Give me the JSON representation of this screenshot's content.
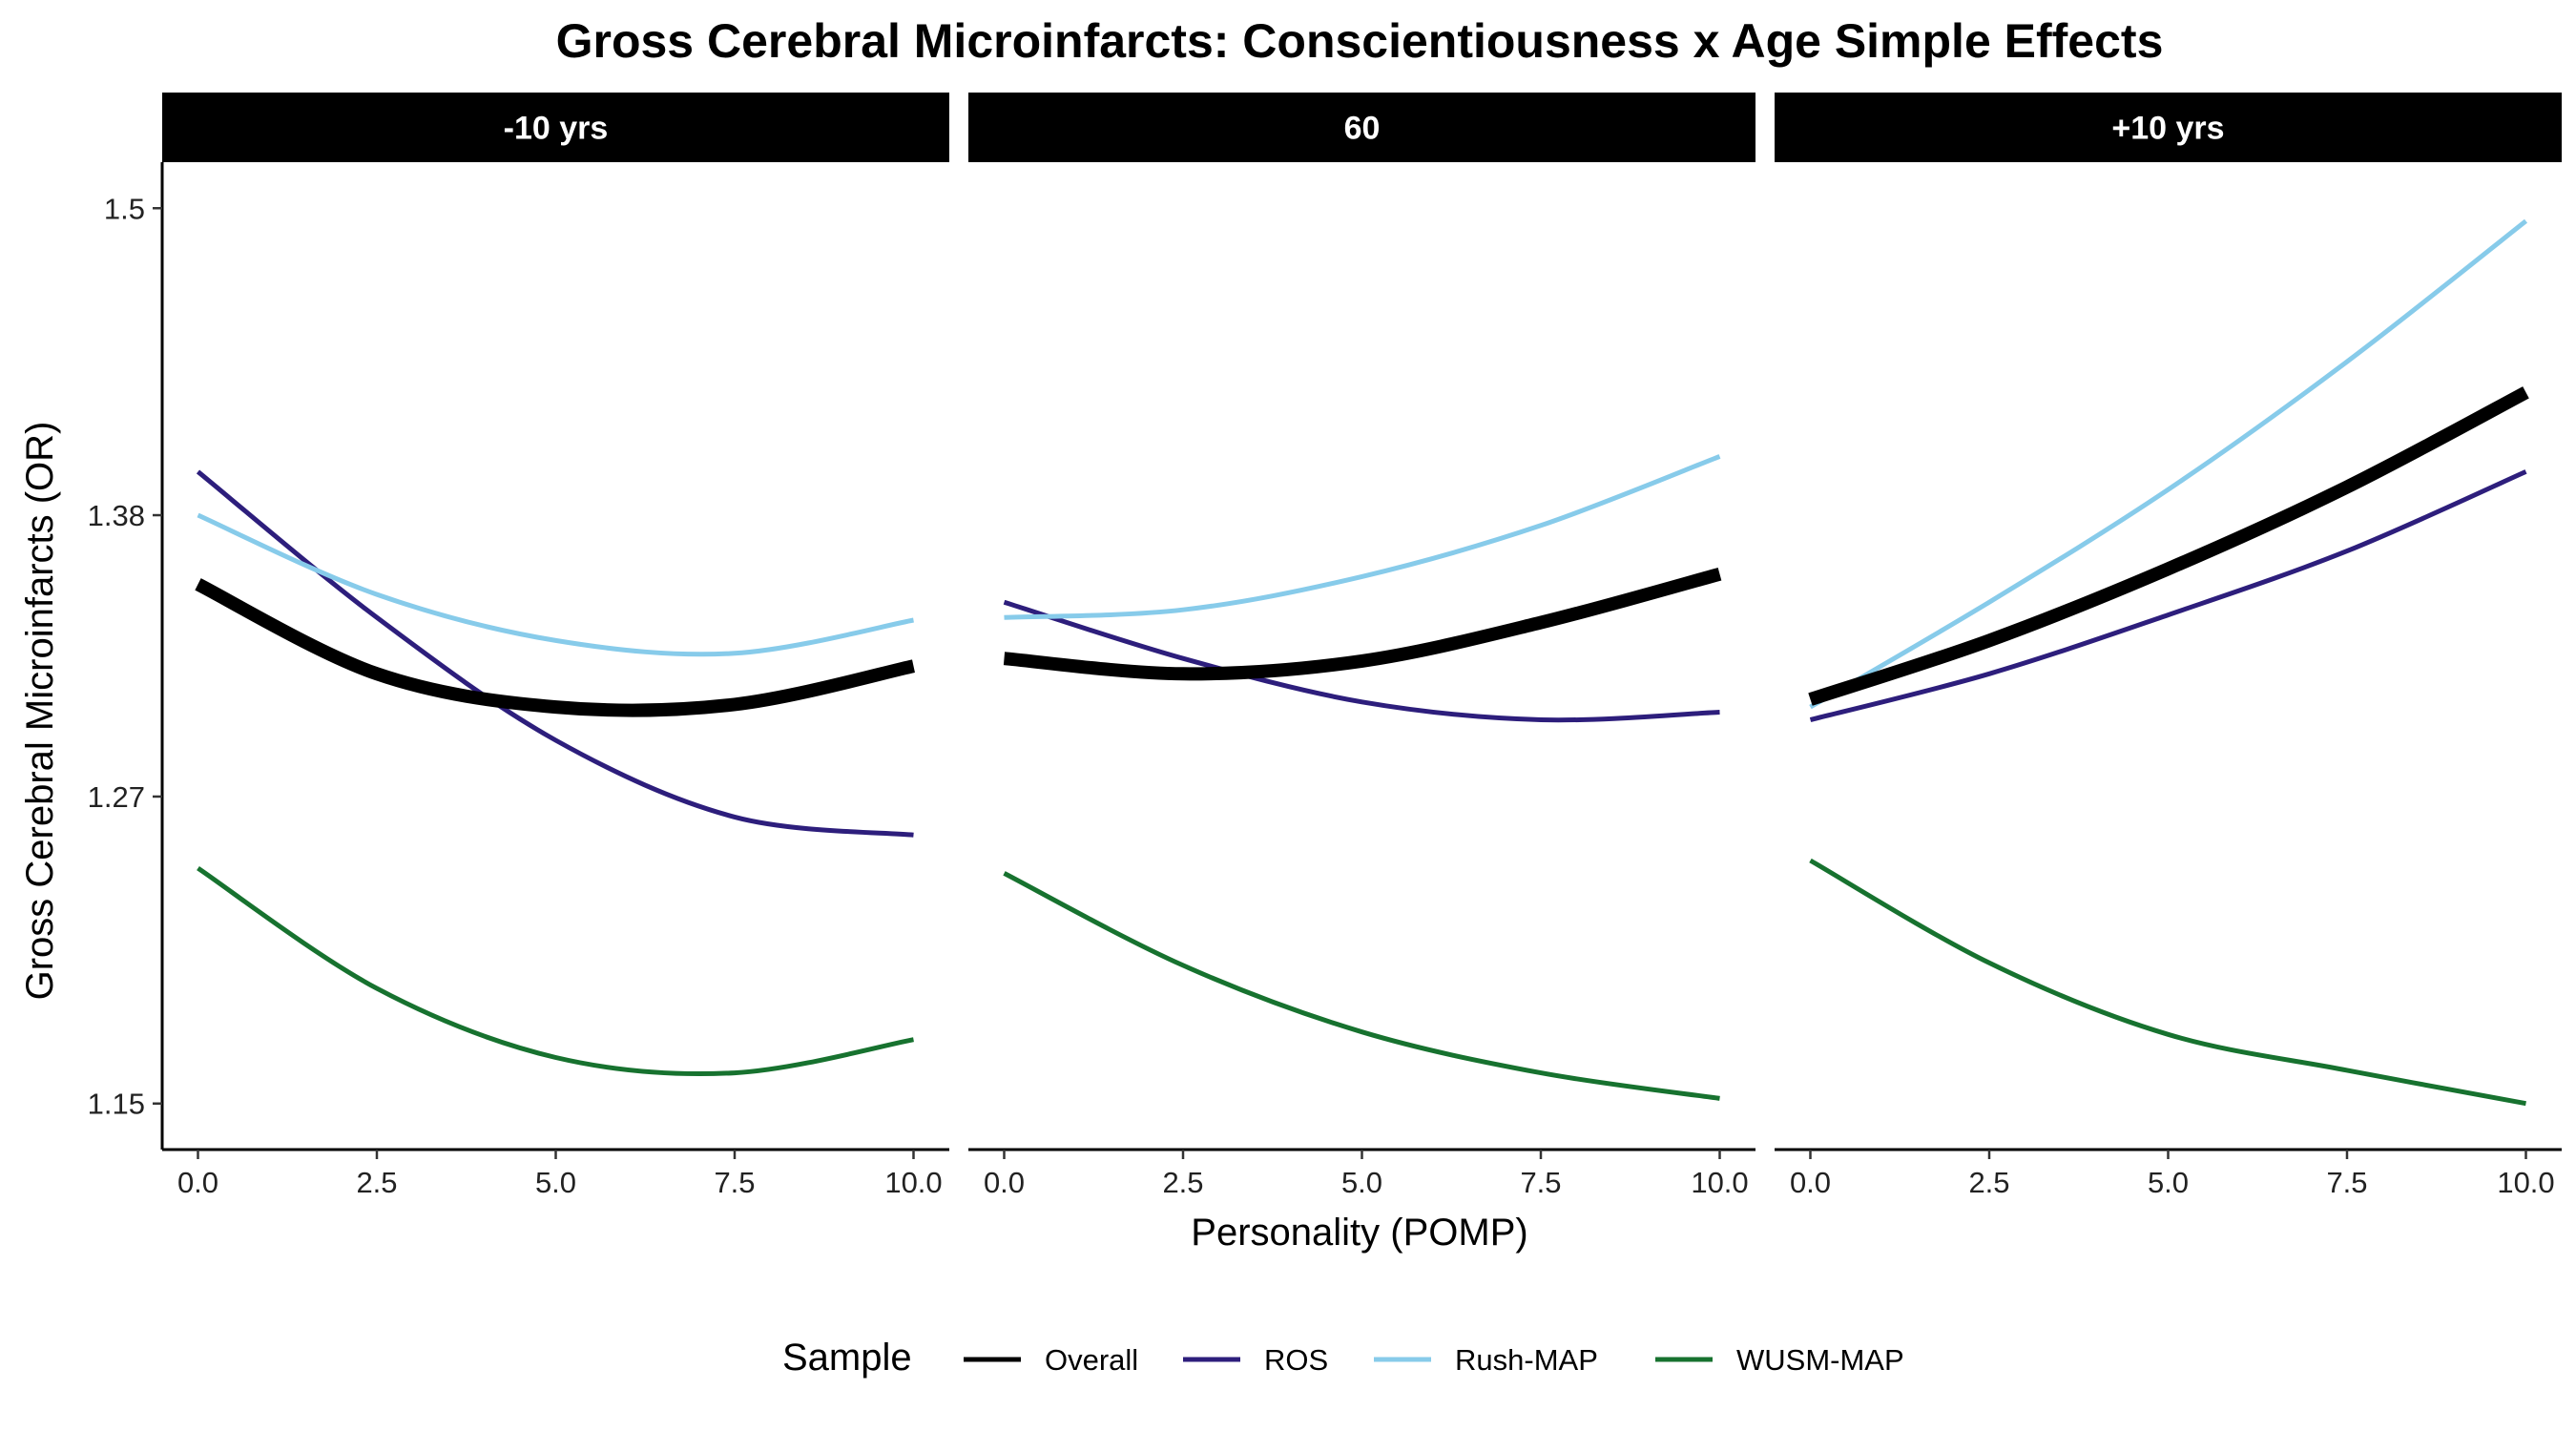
{
  "chart_data": {
    "type": "line",
    "title": "Gross Cerebral Microinfarcts: Conscientiousness x Age Simple Effects",
    "xlabel": "Personality (POMP)",
    "ylabel": "Gross Cerebral Microinfarcts (OR)",
    "xlim": [
      -0.5,
      10.5
    ],
    "ylim": [
      1.132,
      1.518
    ],
    "x_ticks": [
      0,
      2.5,
      5,
      7.5,
      10
    ],
    "x_tick_labels": [
      "0.0",
      "2.5",
      "5.0",
      "7.5",
      "10.0"
    ],
    "y_ticks": [
      1.15,
      1.27,
      1.38,
      1.5
    ],
    "y_tick_labels": [
      "1.15",
      "1.27",
      "1.38",
      "1.5"
    ],
    "grid": false,
    "legend": {
      "title": "Sample",
      "position": "bottom",
      "entries": [
        {
          "name": "Overall",
          "color": "#000000"
        },
        {
          "name": "ROS",
          "color": "#2D1E7C"
        },
        {
          "name": "Rush-MAP",
          "color": "#87CBEA"
        },
        {
          "name": "WUSM-MAP",
          "color": "#17722F"
        }
      ]
    },
    "panels": [
      {
        "label": "-10 yrs",
        "series": [
          {
            "name": "Overall",
            "x": [
              0,
              2.5,
              5,
              7.5,
              10
            ],
            "y": [
              1.353,
              1.318,
              1.305,
              1.306,
              1.321
            ]
          },
          {
            "name": "ROS",
            "x": [
              0,
              2.5,
              5,
              7.5,
              10
            ],
            "y": [
              1.397,
              1.34,
              1.292,
              1.262,
              1.255
            ]
          },
          {
            "name": "Rush-MAP",
            "x": [
              0,
              2.5,
              5,
              7.5,
              10
            ],
            "y": [
              1.38,
              1.349,
              1.331,
              1.326,
              1.339
            ]
          },
          {
            "name": "WUSM-MAP",
            "x": [
              0,
              2.5,
              5,
              7.5,
              10
            ],
            "y": [
              1.242,
              1.195,
              1.168,
              1.162,
              1.175
            ]
          }
        ]
      },
      {
        "label": "60",
        "series": [
          {
            "name": "Overall",
            "x": [
              0,
              2.5,
              5,
              7.5,
              10
            ],
            "y": [
              1.324,
              1.318,
              1.323,
              1.338,
              1.357
            ]
          },
          {
            "name": "ROS",
            "x": [
              0,
              2.5,
              5,
              7.5,
              10
            ],
            "y": [
              1.346,
              1.324,
              1.307,
              1.3,
              1.303
            ]
          },
          {
            "name": "Rush-MAP",
            "x": [
              0,
              2.5,
              5,
              7.5,
              10
            ],
            "y": [
              1.34,
              1.343,
              1.356,
              1.376,
              1.403
            ]
          },
          {
            "name": "WUSM-MAP",
            "x": [
              0,
              2.5,
              5,
              7.5,
              10
            ],
            "y": [
              1.24,
              1.204,
              1.178,
              1.162,
              1.152
            ]
          }
        ]
      },
      {
        "label": "+10 yrs",
        "series": [
          {
            "name": "Overall",
            "x": [
              0,
              2.5,
              5,
              7.5,
              10
            ],
            "y": [
              1.308,
              1.331,
              1.359,
              1.391,
              1.428
            ]
          },
          {
            "name": "ROS",
            "x": [
              0,
              2.5,
              5,
              7.5,
              10
            ],
            "y": [
              1.3,
              1.318,
              1.341,
              1.366,
              1.397
            ]
          },
          {
            "name": "Rush-MAP",
            "x": [
              0,
              2.5,
              5,
              7.5,
              10
            ],
            "y": [
              1.305,
              1.346,
              1.39,
              1.44,
              1.495
            ]
          },
          {
            "name": "WUSM-MAP",
            "x": [
              0,
              2.5,
              5,
              7.5,
              10
            ],
            "y": [
              1.245,
              1.205,
              1.177,
              1.163,
              1.15
            ]
          }
        ]
      }
    ]
  }
}
